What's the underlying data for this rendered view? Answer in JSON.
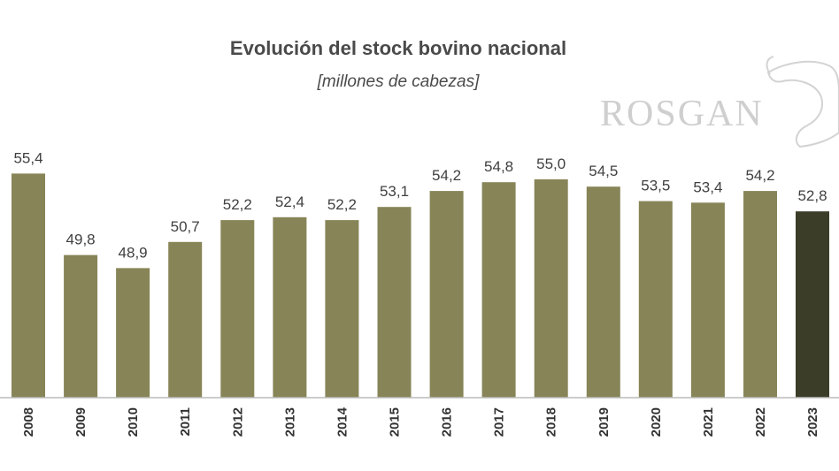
{
  "chart_data": {
    "type": "bar",
    "title": "Evolución del stock bovino nacional",
    "subtitle": "[millones de cabezas]",
    "categories": [
      "2008",
      "2009",
      "2010",
      "2011",
      "2012",
      "2013",
      "2014",
      "2015",
      "2016",
      "2017",
      "2018",
      "2019",
      "2020",
      "2021",
      "2022",
      "2023"
    ],
    "values": [
      55.4,
      49.8,
      48.9,
      50.7,
      52.2,
      52.4,
      52.2,
      53.1,
      54.2,
      54.8,
      55.0,
      54.5,
      53.5,
      53.4,
      54.2,
      52.8
    ],
    "value_labels": [
      "55,4",
      "49,8",
      "48,9",
      "50,7",
      "52,2",
      "52,4",
      "52,2",
      "53,1",
      "54,2",
      "54,8",
      "55,0",
      "54,5",
      "53,5",
      "53,4",
      "54,2",
      "52,8"
    ],
    "xlabel": "",
    "ylabel": "",
    "ylim": [
      40,
      57
    ],
    "grid": false,
    "legend": "none",
    "colors": {
      "bar": "#878457",
      "highlight_bar": "#3c3d28",
      "baseline": "#bcbcbc"
    },
    "highlight_category": "2023"
  },
  "watermark": {
    "text": "ROSGAN",
    "icon": "cow-head-icon"
  }
}
